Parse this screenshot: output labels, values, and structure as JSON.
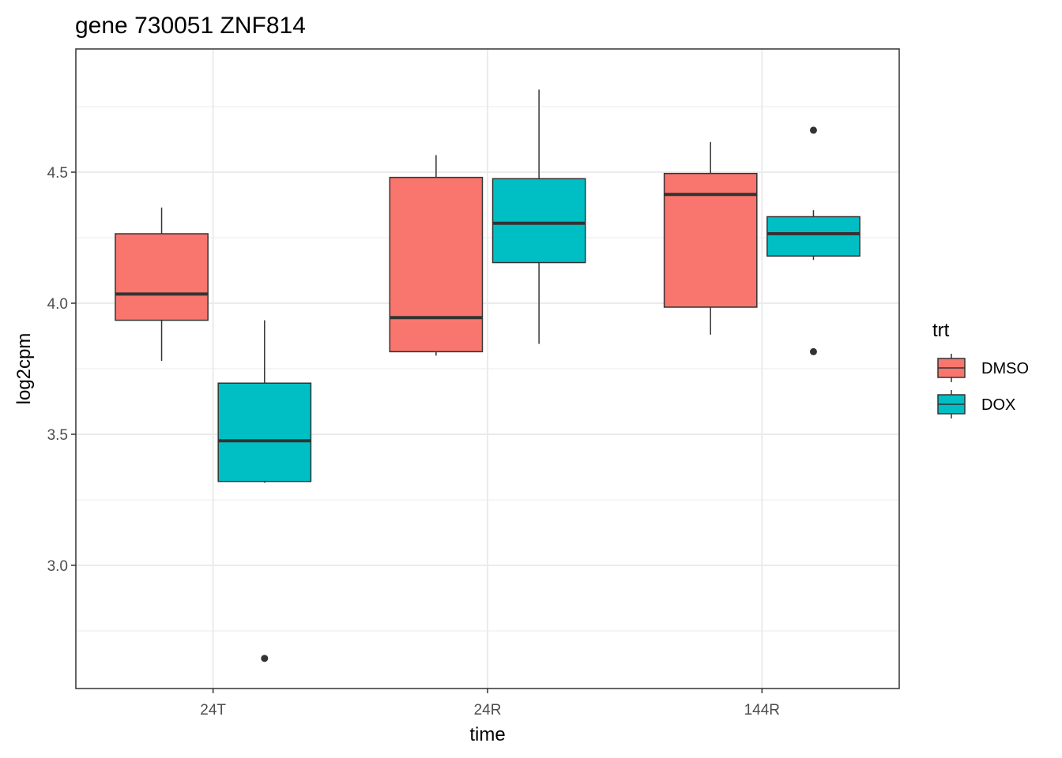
{
  "chart_data": {
    "type": "boxplot",
    "title": "gene 730051 ZNF814",
    "xlabel": "time",
    "ylabel": "log2cpm",
    "categories": [
      "24T",
      "24R",
      "144R"
    ],
    "ylim": [
      2.53,
      4.97
    ],
    "yticks": [
      3.0,
      3.5,
      4.0,
      4.5
    ],
    "ytick_labels": [
      "3.0",
      "3.5",
      "4.0",
      "4.5"
    ],
    "grid": true,
    "legend": {
      "title": "trt",
      "position": "right",
      "entries": [
        "DMSO",
        "DOX"
      ]
    },
    "series": [
      {
        "name": "DMSO",
        "color": "#F8766D",
        "boxes": [
          {
            "category": "24T",
            "whisker_low": 3.78,
            "q1": 3.935,
            "median": 4.035,
            "q3": 4.265,
            "whisker_high": 4.365,
            "outliers": []
          },
          {
            "category": "24R",
            "whisker_low": 3.8,
            "q1": 3.815,
            "median": 3.945,
            "q3": 4.48,
            "whisker_high": 4.565,
            "outliers": []
          },
          {
            "category": "144R",
            "whisker_low": 3.88,
            "q1": 3.985,
            "median": 4.415,
            "q3": 4.495,
            "whisker_high": 4.615,
            "outliers": []
          }
        ]
      },
      {
        "name": "DOX",
        "color": "#00BFC4",
        "boxes": [
          {
            "category": "24T",
            "whisker_low": 3.315,
            "q1": 3.32,
            "median": 3.475,
            "q3": 3.695,
            "whisker_high": 3.935,
            "outliers": [
              2.645
            ]
          },
          {
            "category": "24R",
            "whisker_low": 3.845,
            "q1": 4.155,
            "median": 4.305,
            "q3": 4.475,
            "whisker_high": 4.815,
            "outliers": []
          },
          {
            "category": "144R",
            "whisker_low": 4.165,
            "q1": 4.18,
            "median": 4.265,
            "q3": 4.33,
            "whisker_high": 4.355,
            "outliers": [
              4.66,
              3.815
            ]
          }
        ]
      }
    ]
  }
}
